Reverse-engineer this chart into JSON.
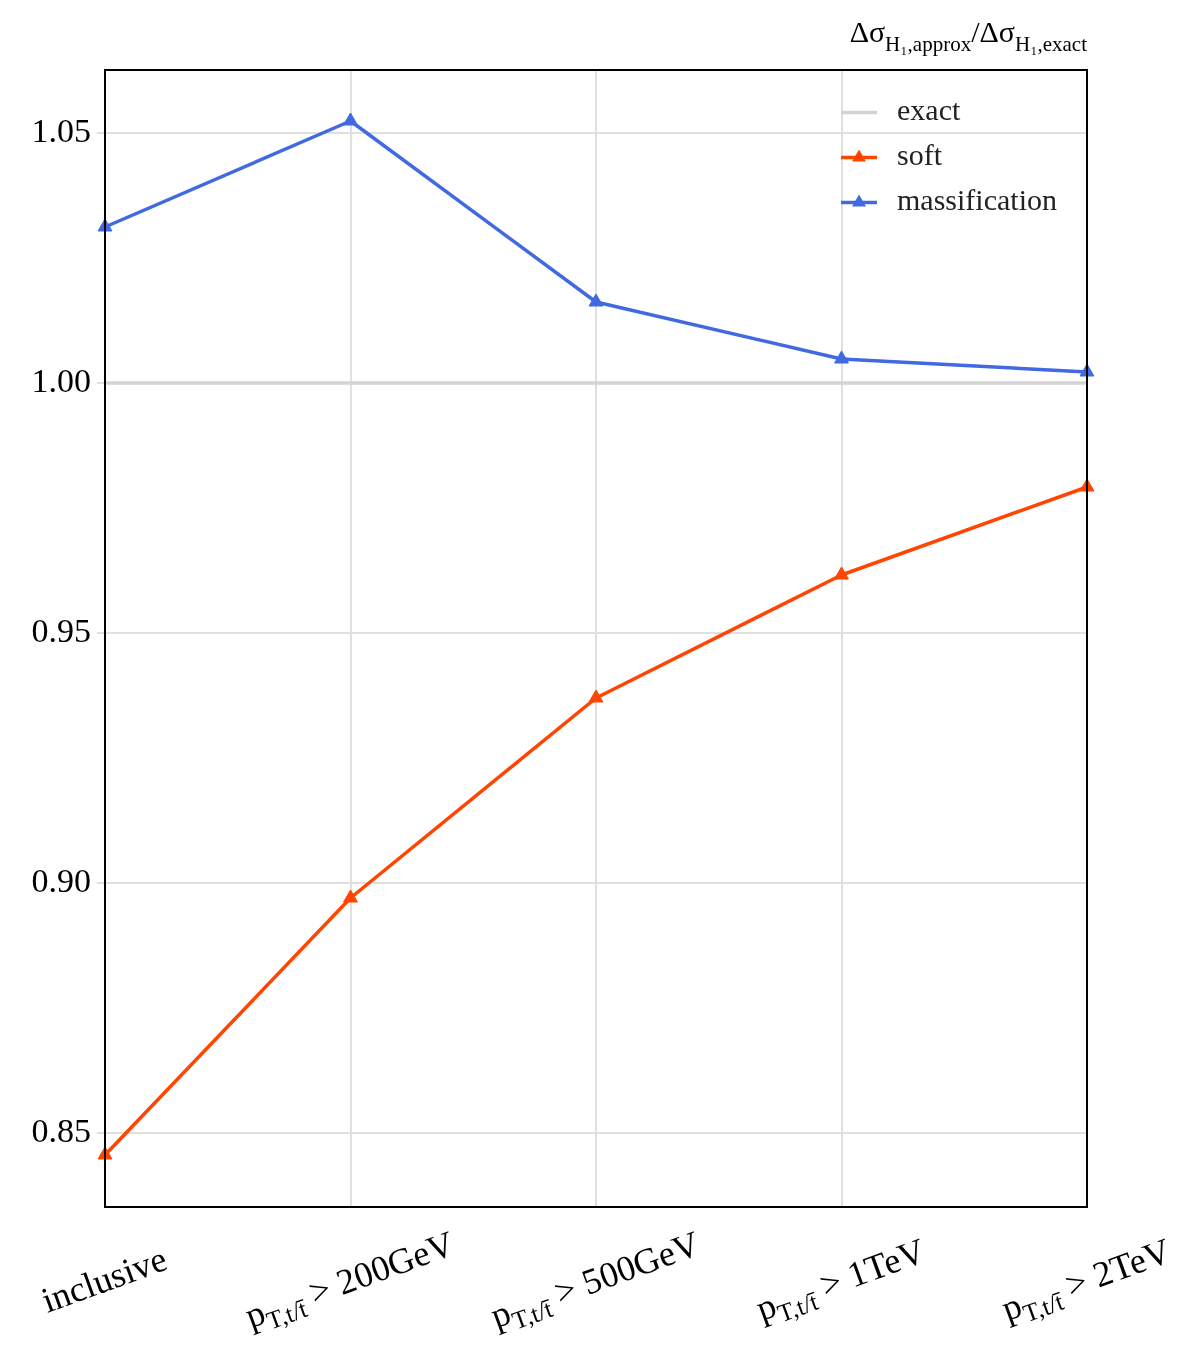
{
  "chart_data": {
    "type": "line",
    "ylabel": "Δσ$_{H₁,approx}$/Δσ$_{H₁,exact}$",
    "categories": [
      "inclusive",
      "p$_{T,t/t̄}$ > 200GeV",
      "p$_{T,t/t̄}$ > 500GeV",
      "p$_{T,t/t̄}$ > 1TeV",
      "p$_{T,t/t̄}$ > 2TeV"
    ],
    "series": [
      {
        "name": "exact",
        "color": "#d3d3d3",
        "marker": "none",
        "values": [
          1,
          1,
          1,
          1,
          1
        ]
      },
      {
        "name": "soft",
        "color": "#ff4500",
        "marker": "triangle",
        "values": [
          0.8456,
          0.897,
          0.937,
          0.9616,
          0.9792
        ]
      },
      {
        "name": "massification",
        "color": "#4169e1",
        "marker": "triangle",
        "values": [
          1.0312,
          1.0524,
          1.0162,
          1.0048,
          1.0022
        ]
      }
    ],
    "ylim": [
      0.8352,
      1.0626
    ],
    "yticks": [
      0.85,
      {
        "value": 0.9,
        "label": "0.90"
      },
      0.95,
      {
        "value": 1,
        "label": "1.00"
      },
      1.05
    ],
    "grid": true,
    "legend": "top right"
  }
}
